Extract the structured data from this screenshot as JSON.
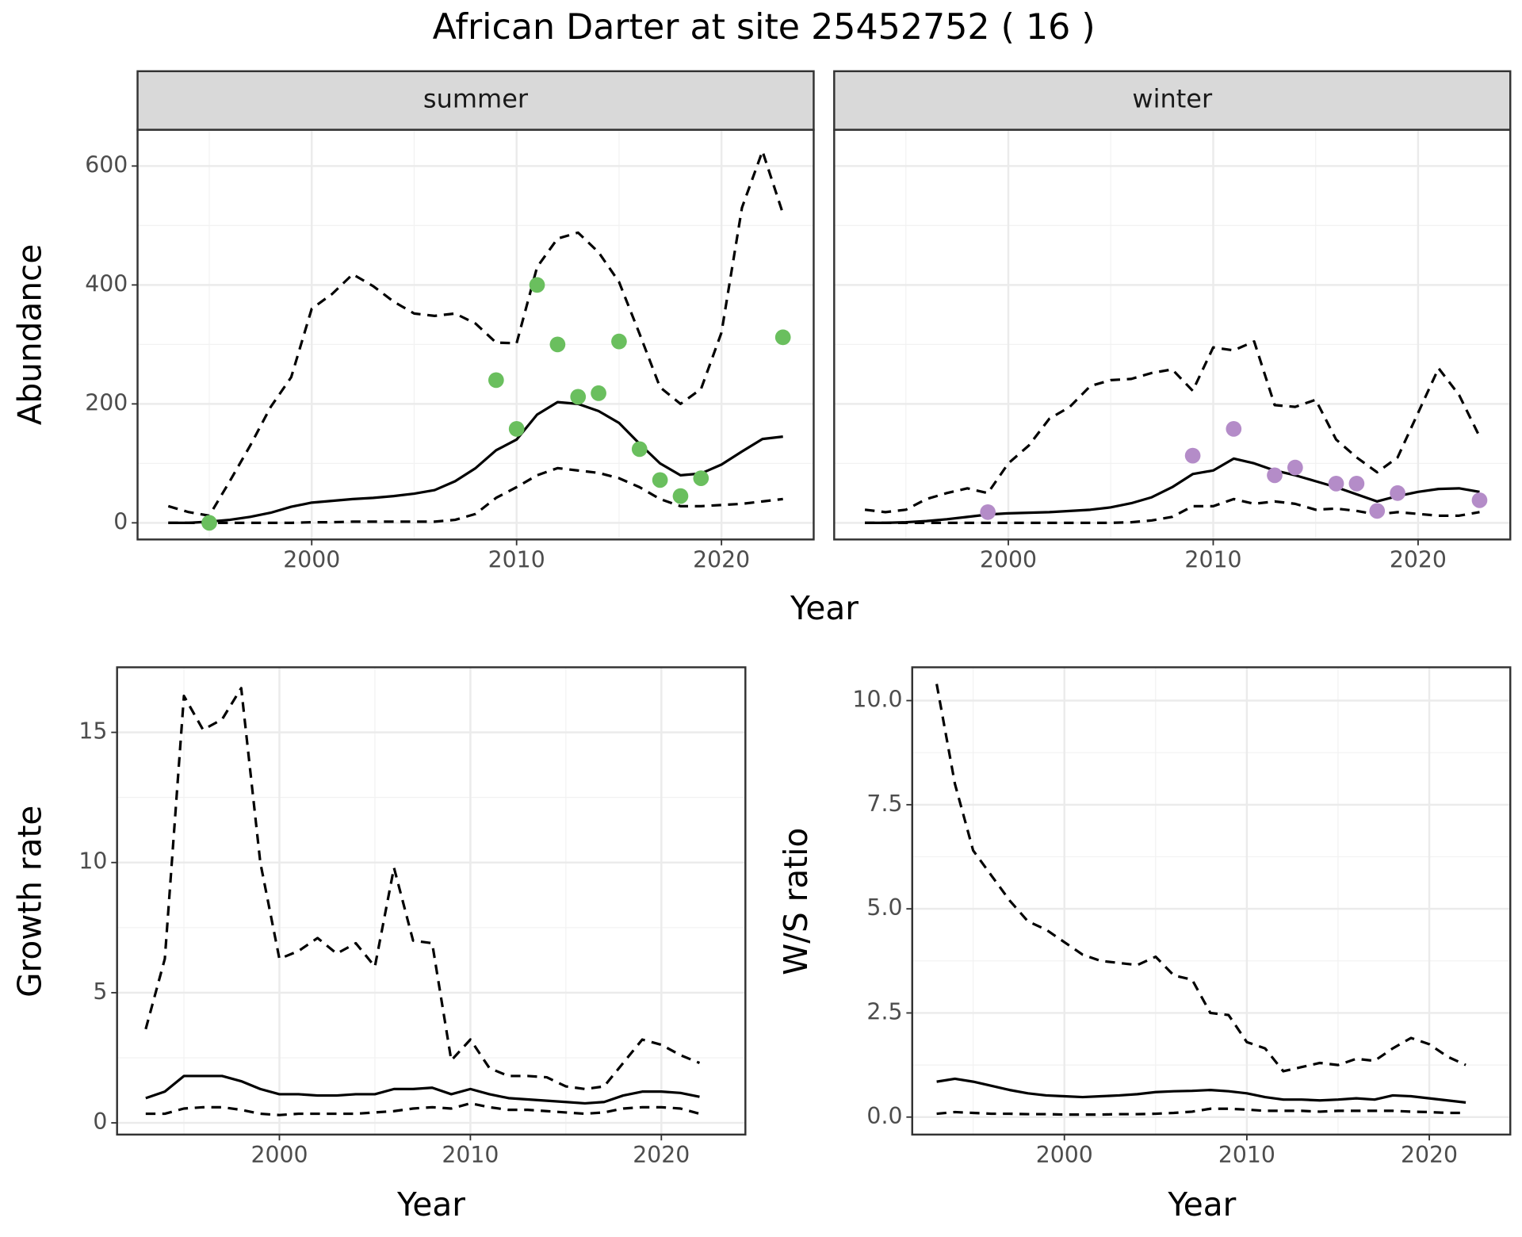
{
  "title": "African Darter at site 25452752 ( 16 )",
  "chart_data": [
    {
      "type": "line",
      "title": "summer",
      "xlabel": "Year",
      "ylabel": "Abundance",
      "xlim": [
        1991.5,
        2024.5
      ],
      "ylim": [
        -28,
        661
      ],
      "xticks": [
        2000,
        2010,
        2020
      ],
      "yticks": [
        0,
        200,
        400,
        600
      ],
      "xminor": [
        1995,
        2005,
        2015
      ],
      "yminor": [
        100,
        300,
        500
      ],
      "grid": true,
      "ytick_labels": true,
      "x": [
        1993,
        1994,
        1995,
        1996,
        1997,
        1998,
        1999,
        2000,
        2001,
        2002,
        2003,
        2004,
        2005,
        2006,
        2007,
        2008,
        2009,
        2010,
        2011,
        2012,
        2013,
        2014,
        2015,
        2016,
        2017,
        2018,
        2019,
        2020,
        2021,
        2022,
        2023
      ],
      "series": [
        {
          "style": "solid",
          "color": "#000000",
          "values": [
            0,
            0,
            2,
            5,
            10,
            17,
            27,
            34,
            37,
            40,
            42,
            45,
            49,
            55,
            70,
            92,
            122,
            140,
            182,
            203,
            200,
            188,
            168,
            133,
            100,
            80,
            83,
            98,
            120,
            141,
            145
          ]
        },
        {
          "style": "dashed",
          "color": "#000000",
          "values": [
            28,
            18,
            12,
            70,
            130,
            195,
            245,
            360,
            385,
            418,
            398,
            372,
            352,
            348,
            352,
            335,
            303,
            302,
            430,
            478,
            488,
            455,
            405,
            318,
            228,
            200,
            225,
            320,
            530,
            625,
            520
          ]
        },
        {
          "style": "dashed",
          "color": "#000000",
          "values": [
            0,
            0,
            0,
            0,
            0,
            0,
            0,
            1,
            1,
            2,
            2,
            2,
            2,
            2,
            5,
            15,
            42,
            60,
            80,
            92,
            88,
            84,
            75,
            60,
            40,
            28,
            28,
            30,
            32,
            36,
            40
          ]
        },
        {
          "style": "points",
          "color": "#6abf5e",
          "x": [
            1995,
            2009,
            2010,
            2011,
            2012,
            2013,
            2014,
            2015,
            2016,
            2017,
            2018,
            2019,
            2023
          ],
          "values": [
            0,
            240,
            158,
            400,
            300,
            212,
            218,
            305,
            124,
            72,
            45,
            75,
            312
          ]
        }
      ]
    },
    {
      "type": "line",
      "title": "winter",
      "xlim": [
        1991.5,
        2024.5
      ],
      "ylim": [
        -28,
        661
      ],
      "xticks": [
        2000,
        2010,
        2020
      ],
      "yticks": [
        0,
        200,
        400,
        600
      ],
      "xminor": [
        1995,
        2005,
        2015
      ],
      "yminor": [
        100,
        300,
        500
      ],
      "grid": true,
      "ytick_labels": false,
      "x": [
        1993,
        1994,
        1995,
        1996,
        1997,
        1998,
        1999,
        2000,
        2001,
        2002,
        2003,
        2004,
        2005,
        2006,
        2007,
        2008,
        2009,
        2010,
        2011,
        2012,
        2013,
        2014,
        2015,
        2016,
        2017,
        2018,
        2019,
        2020,
        2021,
        2022,
        2023
      ],
      "series": [
        {
          "style": "solid",
          "color": "#000000",
          "values": [
            0,
            0,
            1,
            3,
            6,
            10,
            14,
            16,
            17,
            18,
            20,
            22,
            26,
            33,
            43,
            60,
            82,
            88,
            108,
            100,
            88,
            80,
            70,
            60,
            48,
            36,
            45,
            52,
            57,
            58,
            52
          ]
        },
        {
          "style": "dashed",
          "color": "#000000",
          "values": [
            22,
            18,
            22,
            40,
            50,
            58,
            50,
            100,
            130,
            175,
            195,
            230,
            240,
            242,
            252,
            258,
            222,
            295,
            290,
            305,
            198,
            195,
            207,
            140,
            110,
            85,
            110,
            185,
            260,
            215,
            145
          ]
        },
        {
          "style": "dashed",
          "color": "#000000",
          "values": [
            0,
            0,
            0,
            0,
            0,
            0,
            0,
            0,
            0,
            0,
            0,
            0,
            0,
            1,
            4,
            10,
            28,
            28,
            40,
            32,
            36,
            32,
            22,
            24,
            20,
            14,
            18,
            15,
            12,
            12,
            18
          ]
        },
        {
          "style": "points",
          "color": "#b48cc8",
          "x": [
            1999,
            2009,
            2011,
            2013,
            2014,
            2016,
            2017,
            2018,
            2019,
            2023
          ],
          "values": [
            18,
            113,
            158,
            80,
            93,
            66,
            66,
            20,
            50,
            38
          ]
        }
      ]
    },
    {
      "type": "line",
      "xlabel": "Year",
      "ylabel": "Growth rate",
      "xlim": [
        1991.5,
        2024.4
      ],
      "ylim": [
        -0.45,
        17.5
      ],
      "xticks": [
        2000,
        2010,
        2020
      ],
      "yticks": [
        0,
        5,
        10,
        15
      ],
      "xminor": [
        1995,
        2005,
        2015
      ],
      "yminor": [
        2.5,
        7.5,
        12.5
      ],
      "grid": true,
      "ytick_labels": true,
      "x": [
        1993,
        1994,
        1995,
        1996,
        1997,
        1998,
        1999,
        2000,
        2001,
        2002,
        2003,
        2004,
        2005,
        2006,
        2007,
        2008,
        2009,
        2010,
        2011,
        2012,
        2013,
        2014,
        2015,
        2016,
        2017,
        2018,
        2019,
        2020,
        2021,
        2022
      ],
      "series": [
        {
          "style": "solid",
          "color": "#000000",
          "values": [
            0.95,
            1.2,
            1.8,
            1.8,
            1.8,
            1.6,
            1.3,
            1.1,
            1.1,
            1.05,
            1.05,
            1.1,
            1.1,
            1.3,
            1.3,
            1.35,
            1.1,
            1.3,
            1.1,
            0.95,
            0.9,
            0.85,
            0.8,
            0.75,
            0.8,
            1.05,
            1.2,
            1.2,
            1.15,
            1.0
          ]
        },
        {
          "style": "dashed",
          "color": "#000000",
          "values": [
            3.6,
            6.3,
            16.4,
            15.1,
            15.5,
            16.7,
            10.0,
            6.3,
            6.6,
            7.1,
            6.5,
            6.9,
            6.0,
            9.8,
            7.0,
            6.9,
            2.4,
            3.2,
            2.1,
            1.8,
            1.8,
            1.75,
            1.4,
            1.3,
            1.4,
            2.3,
            3.2,
            3.0,
            2.6,
            2.3
          ]
        },
        {
          "style": "dashed",
          "color": "#000000",
          "values": [
            0.35,
            0.35,
            0.55,
            0.6,
            0.6,
            0.5,
            0.35,
            0.3,
            0.35,
            0.35,
            0.35,
            0.35,
            0.4,
            0.45,
            0.55,
            0.6,
            0.55,
            0.75,
            0.6,
            0.5,
            0.5,
            0.45,
            0.4,
            0.35,
            0.4,
            0.55,
            0.6,
            0.6,
            0.55,
            0.35
          ]
        }
      ]
    },
    {
      "type": "line",
      "xlabel": "Year",
      "ylabel": "W/S ratio",
      "xlim": [
        1991.66,
        2024.44
      ],
      "ylim": [
        -0.42,
        10.8
      ],
      "xticks": [
        2000,
        2010,
        2020
      ],
      "yticks": [
        {
          "value": 0,
          "label": "0.0"
        },
        2.5,
        {
          "value": 5,
          "label": "5.0"
        },
        7.5,
        {
          "value": 10,
          "label": "10.0"
        }
      ],
      "xminor": [
        1995,
        2005,
        2015
      ],
      "yminor": [
        1.25,
        3.75,
        6.25,
        8.75
      ],
      "grid": true,
      "ytick_labels": true,
      "x": [
        1993,
        1994,
        1995,
        1996,
        1997,
        1998,
        1999,
        2000,
        2001,
        2002,
        2003,
        2004,
        2005,
        2006,
        2007,
        2008,
        2009,
        2010,
        2011,
        2012,
        2013,
        2014,
        2015,
        2016,
        2017,
        2018,
        2019,
        2020,
        2021,
        2022
      ],
      "series": [
        {
          "style": "solid",
          "color": "#000000",
          "values": [
            0.85,
            0.92,
            0.85,
            0.75,
            0.65,
            0.57,
            0.52,
            0.5,
            0.48,
            0.5,
            0.52,
            0.55,
            0.6,
            0.62,
            0.63,
            0.65,
            0.62,
            0.57,
            0.48,
            0.42,
            0.42,
            0.4,
            0.42,
            0.45,
            0.42,
            0.52,
            0.5,
            0.45,
            0.4,
            0.35
          ]
        },
        {
          "style": "dashed",
          "color": "#000000",
          "values": [
            10.4,
            8.0,
            6.4,
            5.8,
            5.2,
            4.7,
            4.5,
            4.2,
            3.9,
            3.75,
            3.7,
            3.65,
            3.85,
            3.4,
            3.3,
            2.5,
            2.45,
            1.8,
            1.65,
            1.1,
            1.2,
            1.3,
            1.25,
            1.4,
            1.35,
            1.65,
            1.9,
            1.75,
            1.45,
            1.25
          ]
        },
        {
          "style": "dashed",
          "color": "#000000",
          "values": [
            0.08,
            0.12,
            0.1,
            0.08,
            0.08,
            0.07,
            0.07,
            0.06,
            0.06,
            0.06,
            0.07,
            0.07,
            0.08,
            0.1,
            0.13,
            0.2,
            0.2,
            0.18,
            0.15,
            0.15,
            0.15,
            0.13,
            0.15,
            0.15,
            0.15,
            0.15,
            0.13,
            0.12,
            0.1,
            0.1
          ]
        }
      ]
    }
  ]
}
